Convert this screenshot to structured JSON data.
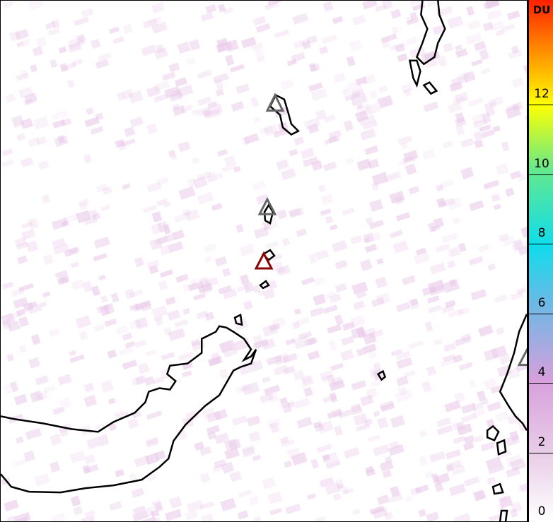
{
  "colorbar": {
    "unit": "DU",
    "ticks": [
      "0",
      "2",
      "4",
      "6",
      "8",
      "10",
      "12"
    ],
    "colors": [
      "#ffffff",
      "#e8cde8",
      "#d8a0dc",
      "#7ab4e4",
      "#10dcec",
      "#60e890",
      "#ffff00",
      "#ff9000",
      "#ff2000"
    ]
  },
  "volcanoes": [
    {
      "status": "inactive",
      "color": "#666666"
    },
    {
      "status": "inactive",
      "color": "#666666"
    },
    {
      "status": "active",
      "color": "#8b0000"
    },
    {
      "status": "inactive",
      "color": "#666666"
    }
  ]
}
